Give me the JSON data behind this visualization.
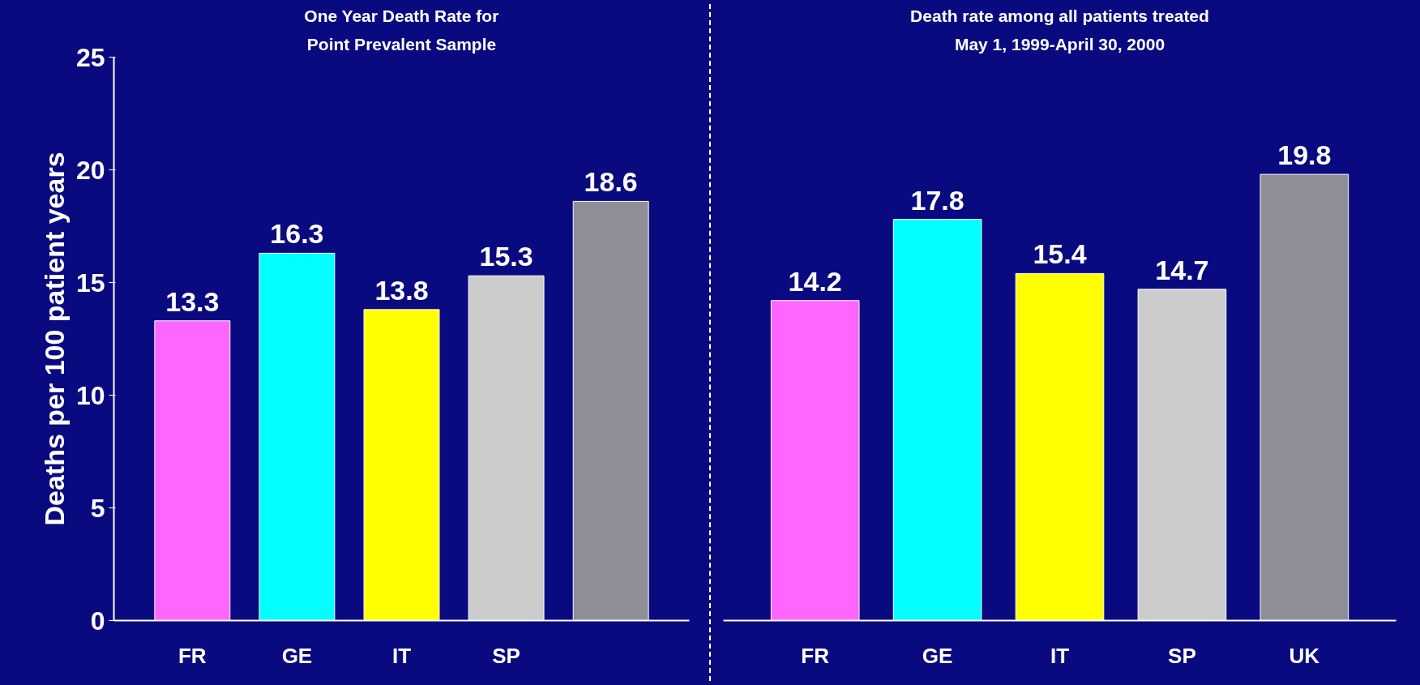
{
  "chart_data": [
    {
      "type": "bar",
      "title": "One Year Death Rate for",
      "subtitle": "Point Prevalent Sample",
      "ylabel": "Deaths per 100 patient years",
      "categories": [
        "FR",
        "GE",
        "IT",
        "SP",
        null
      ],
      "values": [
        13.3,
        16.3,
        13.8,
        15.3,
        18.6
      ],
      "colors": [
        "#ff66ff",
        "#00ffff",
        "#ffff00",
        "#cccccc",
        "#8e8e96"
      ],
      "ylim": [
        0,
        25
      ],
      "yticks": [
        0,
        5,
        10,
        15,
        20,
        25
      ],
      "data_labels": true,
      "grid": false
    },
    {
      "type": "bar",
      "title": "Death rate among all patients treated",
      "subtitle": "May 1, 1999-April 30, 2000",
      "categories": [
        "FR",
        "GE",
        "IT",
        "SP",
        "UK"
      ],
      "values": [
        14.2,
        17.8,
        15.4,
        14.7,
        19.8
      ],
      "colors": [
        "#ff66ff",
        "#00ffff",
        "#ffff00",
        "#cccccc",
        "#8e8e96"
      ],
      "ylim": [
        0,
        25
      ],
      "yticks": [
        0,
        5,
        10,
        15,
        20,
        25
      ],
      "tick_labels": "x",
      "data_labels": true,
      "grid": false
    }
  ]
}
